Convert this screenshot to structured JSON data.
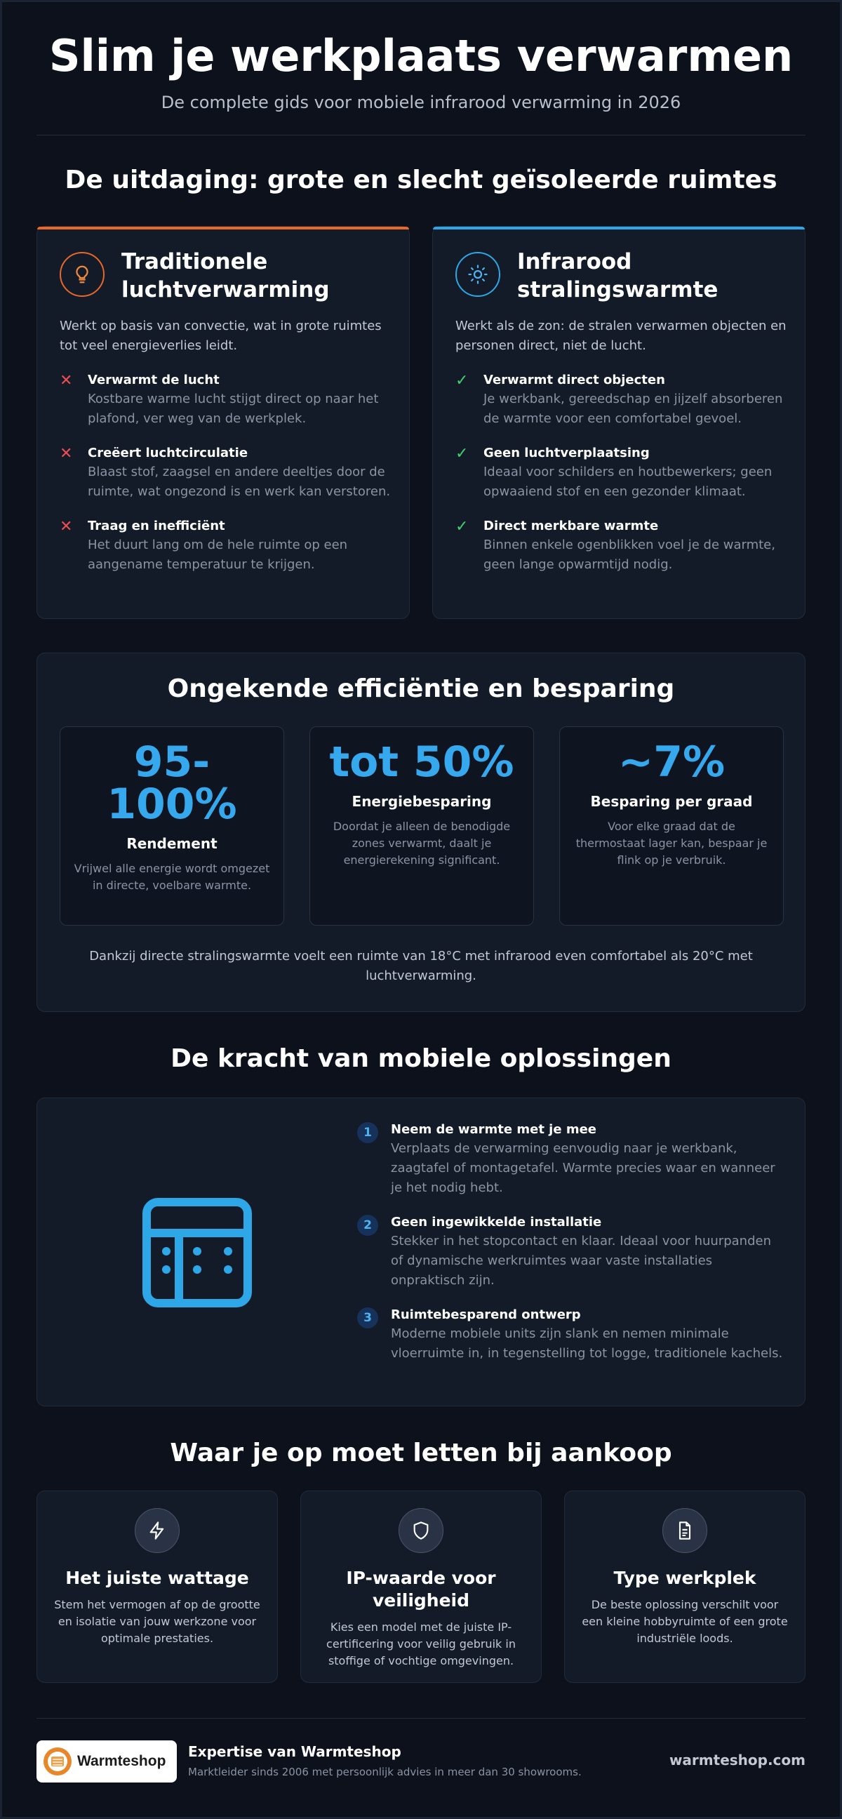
{
  "header": {
    "title": "Slim je werkplaats verwarmen",
    "subtitle": "De complete gids voor mobiele infrarood verwarming in 2026"
  },
  "challenge": {
    "heading": "De uitdaging: grote en slecht geïsoleerde ruimtes",
    "traditional": {
      "accent": "#e8682a",
      "icon": "lightbulb-icon",
      "title": "Traditionele luchtverwarming",
      "description": "Werkt op basis van convectie, wat in grote ruimtes tot veel energieverlies leidt.",
      "items": [
        {
          "title": "Verwarmt de lucht",
          "text": "Kostbare warme lucht stijgt direct op naar het plafond, ver weg van de werkplek."
        },
        {
          "title": "Creëert luchtcirculatie",
          "text": "Blaast stof, zaagsel en andere deeltjes door de ruimte, wat ongezond is en werk kan verstoren."
        },
        {
          "title": "Traag en inefficiënt",
          "text": "Het duurt lang om de hele ruimte op een aangename temperatuur te krijgen."
        }
      ]
    },
    "infrared": {
      "accent": "#2ea7e8",
      "icon": "sun-icon",
      "title": "Infrarood stralingswarmte",
      "description": "Werkt als de zon: de stralen verwarmen objecten en personen direct, niet de lucht.",
      "items": [
        {
          "title": "Verwarmt direct objecten",
          "text": "Je werkbank, gereedschap en jijzelf absorberen de warmte voor een comfortabel gevoel."
        },
        {
          "title": "Geen luchtverplaatsing",
          "text": "Ideaal voor schilders en houtbewerkers; geen opwaaiend stof en een gezonder klimaat."
        },
        {
          "title": "Direct merkbare warmte",
          "text": "Binnen enkele ogenblikken voel je de warmte, geen lange opwarmtijd nodig."
        }
      ]
    }
  },
  "efficiency": {
    "heading": "Ongekende efficiëntie en besparing",
    "stats": [
      {
        "value_line1": "95-",
        "value_line2": "100%",
        "label": "Rendement",
        "desc": "Vrijwel alle energie wordt omgezet in directe, voelbare warmte."
      },
      {
        "value_line1": "tot 50%",
        "value_line2": "",
        "label": "Energiebesparing",
        "desc": "Doordat je alleen de benodigde zones verwarmt, daalt je energierekening significant."
      },
      {
        "value_line1": "~7%",
        "value_line2": "",
        "label": "Besparing per graad",
        "desc": "Voor elke graad dat de thermostaat lager kan, bespaar je flink op je verbruik."
      }
    ],
    "note": "Dankzij directe stralingswarmte voelt een ruimte van 18°C met infrarood even comfortabel als 20°C met luchtverwarming."
  },
  "mobile": {
    "heading": "De kracht van mobiele oplossingen",
    "icon": "heater-panel-icon",
    "items": [
      {
        "num": "1",
        "title": "Neem de warmte met je mee",
        "text": "Verplaats de verwarming eenvoudig naar je werkbank, zaagtafel of montagetafel. Warmte precies waar en wanneer je het nodig hebt."
      },
      {
        "num": "2",
        "title": "Geen ingewikkelde installatie",
        "text": "Stekker in het stopcontact en klaar. Ideaal voor huurpanden of dynamische werkruimtes waar vaste installaties onpraktisch zijn."
      },
      {
        "num": "3",
        "title": "Ruimtebesparend ontwerp",
        "text": "Moderne mobiele units zijn slank en nemen minimale vloerruimte in, in tegenstelling tot logge, traditionele kachels."
      }
    ]
  },
  "buying": {
    "heading": "Waar je op moet letten bij aankoop",
    "cards": [
      {
        "icon": "lightning-icon",
        "title": "Het juiste wattage",
        "text": "Stem het vermogen af op de grootte en isolatie van jouw werkzone voor optimale prestaties."
      },
      {
        "icon": "shield-icon",
        "title": "IP-waarde voor veiligheid",
        "text": "Kies een model met de juiste IP-certificering voor veilig gebruik in stoffige of vochtige omgevingen."
      },
      {
        "icon": "document-icon",
        "title": "Type werkplek",
        "text": "De beste oplossing verschilt voor een kleine hobbyruimte of een grote industriële loods."
      }
    ]
  },
  "footer": {
    "logo_text": "Warmteshop",
    "title": "Expertise van Warmteshop",
    "subtitle": "Marktleider sinds 2006 met persoonlijk advies in meer dan 30 showrooms.",
    "link": "warmteshop.com"
  }
}
